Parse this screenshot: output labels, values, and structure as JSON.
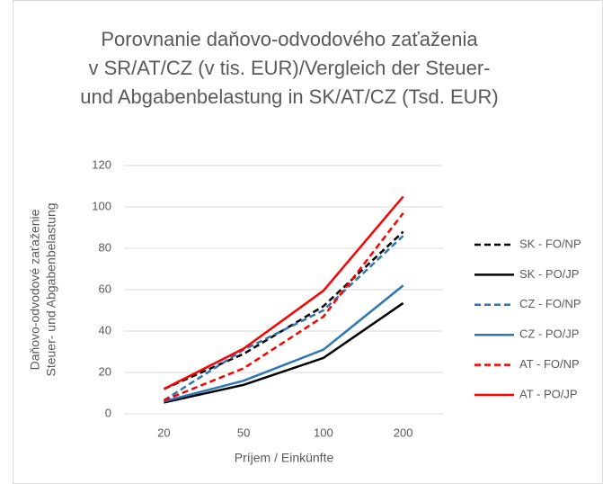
{
  "chart_data": {
    "type": "line",
    "title": [
      "Porovnanie daňovo-odvodového zaťaženia",
      "v SR/AT/CZ (v tis. EUR)/Vergleich der Steuer-",
      "und Abgabenbelastung in SK/AT/CZ (Tsd. EUR)"
    ],
    "y_label": [
      "Daňovo-odvodové zaťaženie",
      "Steuer- und Abgabenbelastung"
    ],
    "x_label": "Príjem / Einkünfte",
    "categories": [
      "20",
      "50",
      "100",
      "200"
    ],
    "ylim": [
      0,
      120
    ],
    "yticks": [
      0,
      20,
      40,
      60,
      80,
      100,
      120
    ],
    "grid": true,
    "legend": "right",
    "series": [
      {
        "name": "SK - FO/NP",
        "color": "#000000",
        "dashed": true,
        "values": [
          12,
          29,
          52,
          88
        ]
      },
      {
        "name": "SK - PO/JP",
        "color": "#000000",
        "dashed": false,
        "values": [
          5.5,
          14,
          27,
          53.5
        ]
      },
      {
        "name": "CZ - FO/NP",
        "color": "#2e75b6",
        "dashed": true,
        "values": [
          6.5,
          31,
          50,
          86
        ]
      },
      {
        "name": "CZ - PO/JP",
        "color": "#2e75b6",
        "dashed": false,
        "values": [
          6,
          16,
          31,
          62
        ]
      },
      {
        "name": "AT - FO/NP",
        "color": "#ff0000",
        "dashed": true,
        "values": [
          6.5,
          22,
          47,
          97
        ]
      },
      {
        "name": "AT - PO/JP",
        "color": "#ff0000",
        "dashed": false,
        "values": [
          12,
          31.5,
          59.5,
          105
        ]
      }
    ]
  }
}
